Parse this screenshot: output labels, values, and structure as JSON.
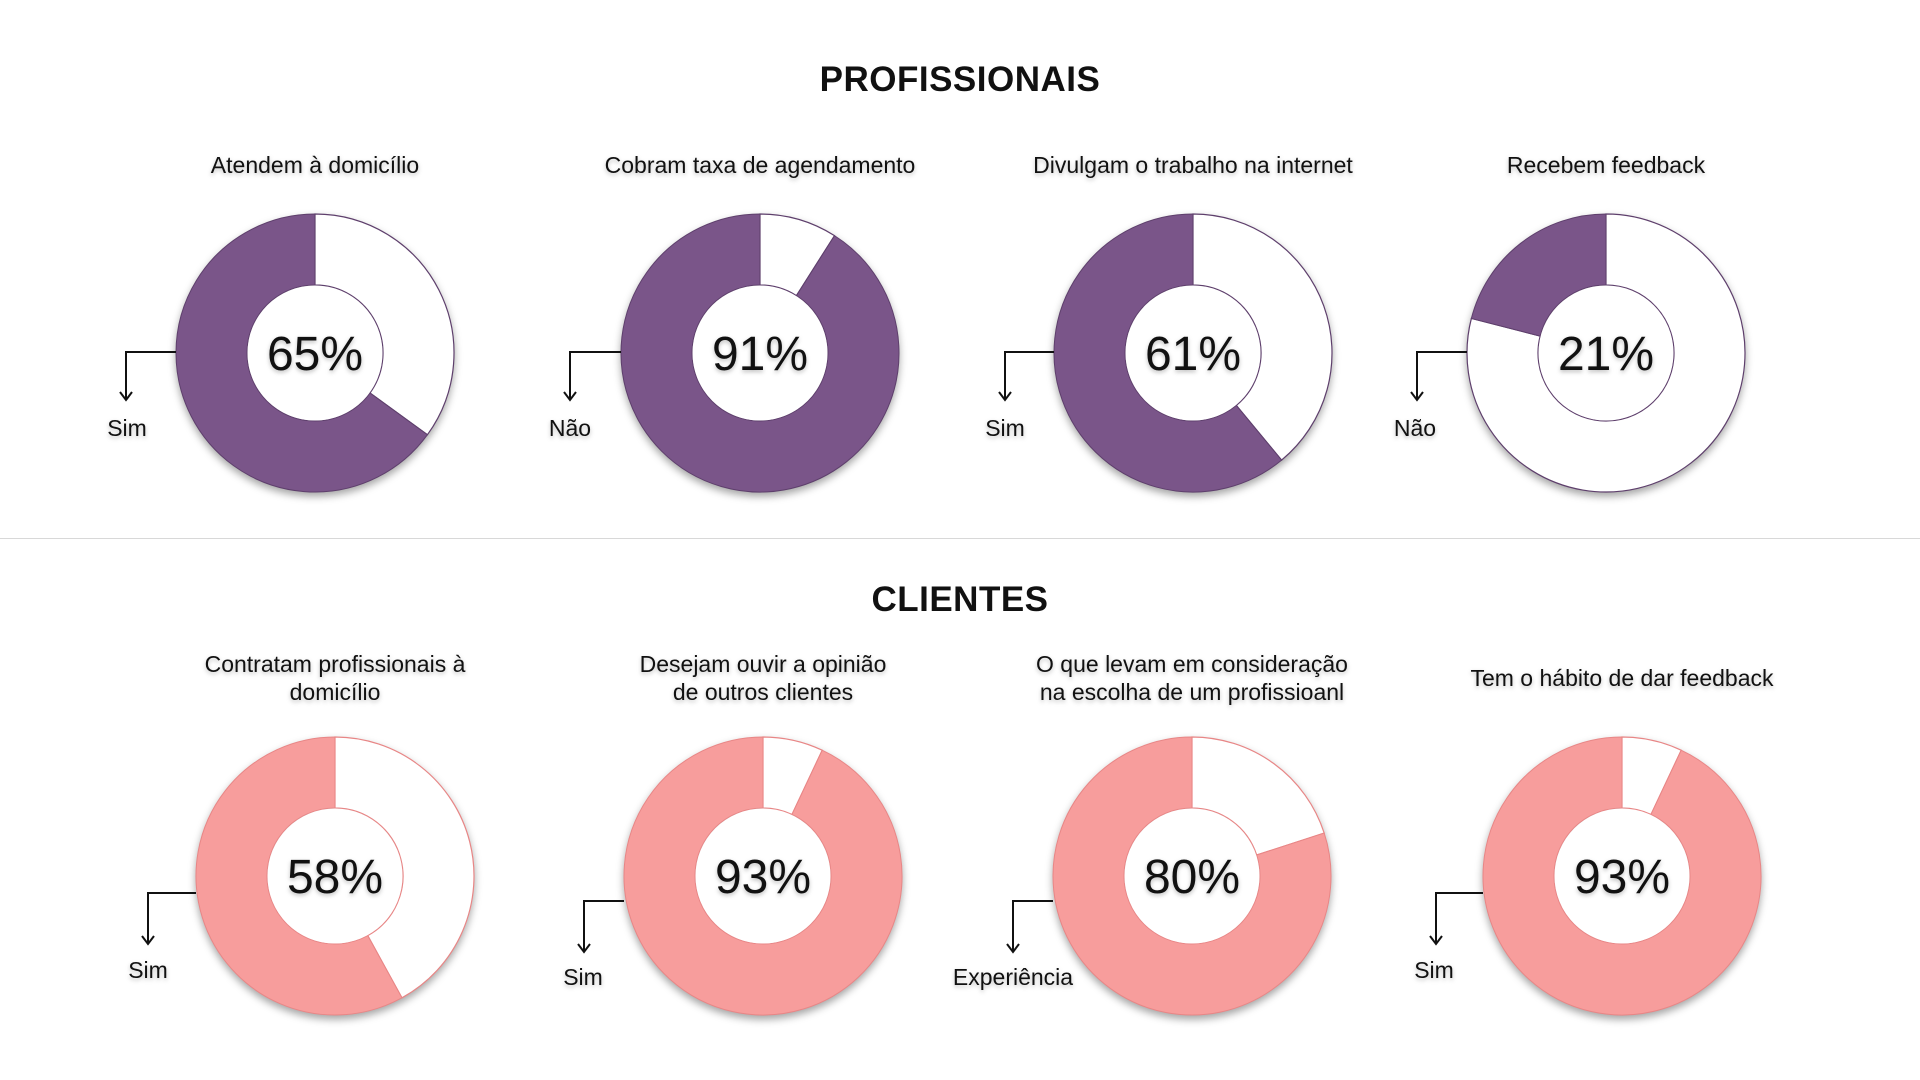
{
  "sections": {
    "professionals_title": "PROFISSIONAIS",
    "clients_title": "CLIENTES"
  },
  "colors": {
    "professionals_fill": "#7a5589",
    "clients_fill": "#f79d9c",
    "remainder_fill": "#ffffff"
  },
  "chart_data": [
    {
      "type": "pie",
      "title": "Atendem à domicílio",
      "value": 65,
      "center_label": "65%",
      "legend_label": "Sim",
      "group": "professionals"
    },
    {
      "type": "pie",
      "title": "Cobram taxa de agendamento",
      "value": 91,
      "center_label": "91%",
      "legend_label": "Não",
      "group": "professionals"
    },
    {
      "type": "pie",
      "title": "Divulgam o trabalho na internet",
      "value": 61,
      "center_label": "61%",
      "legend_label": "Sim",
      "group": "professionals"
    },
    {
      "type": "pie",
      "title": "Recebem feedback",
      "value": 21,
      "center_label": "21%",
      "legend_label": "Não",
      "group": "professionals"
    },
    {
      "type": "pie",
      "title": "Contratam profissionais à domicílio",
      "title_lines": [
        "Contratam profissionais à",
        "domicílio"
      ],
      "value": 58,
      "center_label": "58%",
      "legend_label": "Sim",
      "group": "clients"
    },
    {
      "type": "pie",
      "title": "Desejam ouvir a opinião de outros clientes",
      "title_lines": [
        "Desejam ouvir a opinião",
        "de outros clientes"
      ],
      "value": 93,
      "center_label": "93%",
      "legend_label": "Sim",
      "group": "clients"
    },
    {
      "type": "pie",
      "title": "O que levam em consideração na escolha de um profissioanl",
      "title_lines": [
        "O que levam em consideração",
        "na escolha de um profissioanl"
      ],
      "value": 80,
      "center_label": "80%",
      "legend_label": "Experiência",
      "group": "clients"
    },
    {
      "type": "pie",
      "title": "Tem o hábito de dar feedback",
      "value": 93,
      "center_label": "93%",
      "legend_label": "Sim",
      "group": "clients"
    }
  ]
}
